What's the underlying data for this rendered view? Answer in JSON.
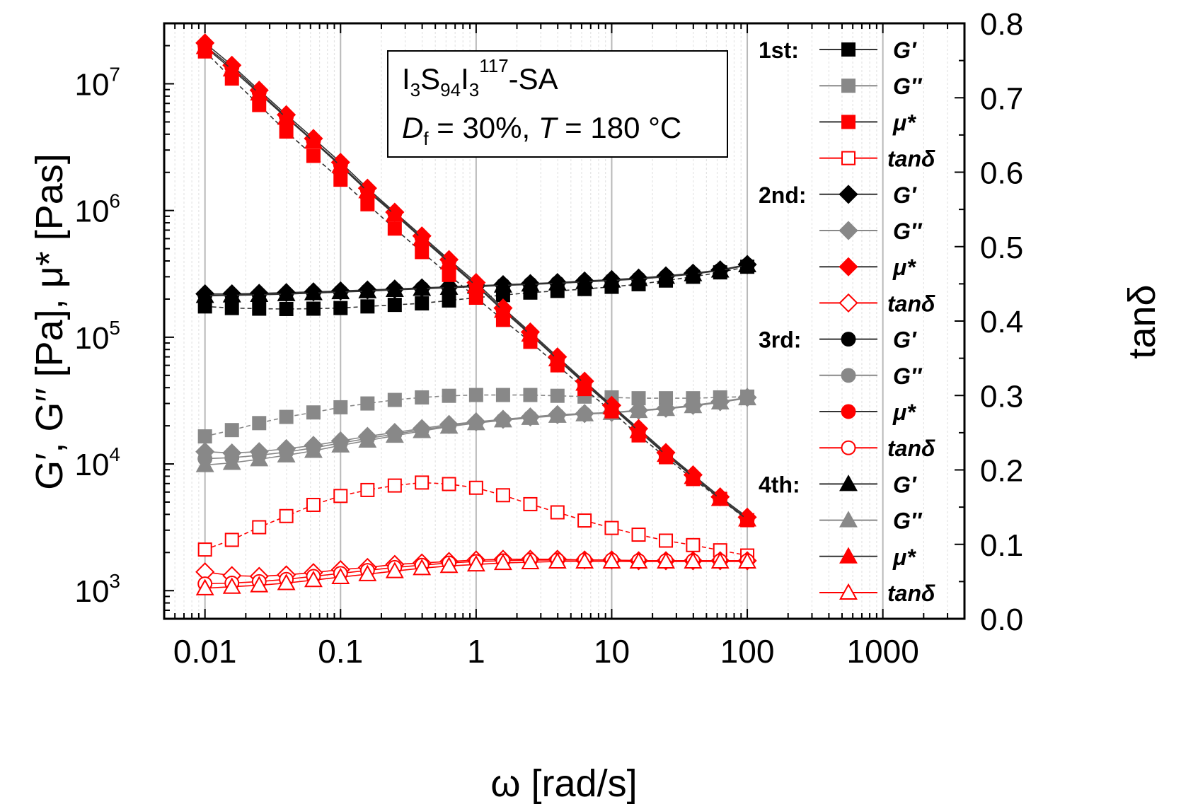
{
  "chart_data": {
    "type": "line",
    "x_axis": {
      "label": "ω [rad/s]",
      "scale": "log",
      "range": [
        0.005,
        4000
      ],
      "ticks": [
        "0.01",
        "0.1",
        "1",
        "10",
        "100",
        "1000"
      ]
    },
    "y_left": {
      "label": "G′, G′′ [Pa], μ* [Pas]",
      "scale": "log",
      "range": [
        600,
        30000000
      ],
      "ticks": [
        {
          "base": "10",
          "exp": "3"
        },
        {
          "base": "10",
          "exp": "4"
        },
        {
          "base": "10",
          "exp": "5"
        },
        {
          "base": "10",
          "exp": "6"
        },
        {
          "base": "10",
          "exp": "7"
        }
      ]
    },
    "y_right": {
      "label": "tanδ",
      "scale": "linear",
      "range": [
        0.0,
        0.8
      ],
      "ticks": [
        "0.0",
        "0.1",
        "0.2",
        "0.3",
        "0.4",
        "0.5",
        "0.6",
        "0.7",
        "0.8"
      ]
    },
    "annotation": {
      "sample_main": "I",
      "sub1": "3",
      "mid": "S",
      "sub2": "94",
      "mid2": "I",
      "sub3": "3",
      "sup": "117",
      "suffix": "-SA",
      "line2_prefix": "D",
      "line2_sub": "f",
      "line2_mid": " = 30%, ",
      "line2_T": "T",
      "line2_end": " = 180 °C"
    },
    "x": [
      0.01,
      0.0158,
      0.0251,
      0.0398,
      0.0631,
      0.1,
      0.158,
      0.251,
      0.398,
      0.631,
      1,
      1.58,
      2.51,
      3.98,
      6.31,
      10,
      15.8,
      25.1,
      39.8,
      63.1,
      100
    ],
    "runs": [
      {
        "label": "1st:",
        "marker": "square"
      },
      {
        "label": "2nd:",
        "marker": "diamond"
      },
      {
        "label": "3rd:",
        "marker": "circle"
      },
      {
        "label": "4th:",
        "marker": "triangle"
      }
    ],
    "quantities": [
      {
        "name": "G′",
        "color": "#000000",
        "line": "#333333",
        "fill": true,
        "axis": "left"
      },
      {
        "name": "G′′",
        "color": "#888888",
        "line": "#888888",
        "fill": true,
        "axis": "left"
      },
      {
        "name": "μ*",
        "color": "#ff0000",
        "line": "#333333",
        "fill": true,
        "axis": "left"
      },
      {
        "name": "tanδ",
        "color": "#ff0000",
        "line": "#ff0000",
        "fill": false,
        "axis": "right"
      }
    ],
    "series": [
      {
        "name": "1st G′",
        "run": 0,
        "q": 0,
        "values": [
          175000,
          170000,
          168000,
          167000,
          168000,
          170000,
          175000,
          180000,
          185000,
          195000,
          205000,
          215000,
          225000,
          232000,
          240000,
          250000,
          262000,
          280000,
          300000,
          325000,
          360000
        ]
      },
      {
        "name": "1st G′′",
        "run": 0,
        "q": 1,
        "values": [
          16500,
          18500,
          21000,
          23500,
          25500,
          28000,
          30000,
          32000,
          33500,
          34500,
          35000,
          35000,
          35000,
          34500,
          34000,
          33500,
          33000,
          33000,
          33000,
          33500,
          34000
        ]
      },
      {
        "name": "1st μ*",
        "run": 0,
        "q": 2,
        "values": [
          18000000,
          11000000,
          6800000,
          4200000,
          2700000,
          1750000,
          1120000,
          720000,
          470000,
          310000,
          205000,
          137000,
          92000,
          60000,
          39000,
          26000,
          16800,
          11300,
          7600,
          5300,
          3600
        ]
      },
      {
        "name": "1st tanδ",
        "run": 0,
        "q": 3,
        "values": [
          0.093,
          0.106,
          0.123,
          0.138,
          0.153,
          0.165,
          0.173,
          0.179,
          0.183,
          0.181,
          0.176,
          0.166,
          0.154,
          0.143,
          0.132,
          0.122,
          0.113,
          0.105,
          0.099,
          0.092,
          0.085
        ]
      },
      {
        "name": "2nd G′",
        "run": 1,
        "q": 0,
        "values": [
          220000,
          220000,
          222000,
          225000,
          228000,
          232000,
          236000,
          240000,
          245000,
          250000,
          255000,
          260000,
          265000,
          270000,
          278000,
          285000,
          293000,
          305000,
          320000,
          340000,
          375000
        ]
      },
      {
        "name": "2nd G′′",
        "run": 1,
        "q": 1,
        "values": [
          12500,
          12200,
          12500,
          13200,
          14000,
          15200,
          16500,
          17700,
          19000,
          20500,
          21500,
          22500,
          23500,
          24500,
          25000,
          25500,
          26500,
          27500,
          29000,
          31000,
          33500
        ]
      },
      {
        "name": "2nd μ*",
        "run": 1,
        "q": 2,
        "values": [
          21000000,
          14000000,
          8900000,
          5700000,
          3700000,
          2400000,
          1500000,
          970000,
          630000,
          410000,
          270000,
          170000,
          110000,
          70000,
          45000,
          29000,
          19000,
          12300,
          8200,
          5500,
          3800
        ]
      },
      {
        "name": "2nd tanδ",
        "run": 1,
        "q": 3,
        "values": [
          0.063,
          0.058,
          0.057,
          0.059,
          0.062,
          0.066,
          0.069,
          0.073,
          0.075,
          0.077,
          0.079,
          0.08,
          0.08,
          0.08,
          0.079,
          0.079,
          0.078,
          0.078,
          0.078,
          0.078,
          0.078
        ]
      },
      {
        "name": "3rd G′",
        "run": 2,
        "q": 0,
        "values": [
          215000,
          216000,
          218000,
          221000,
          225000,
          229000,
          233000,
          238000,
          243000,
          248000,
          253000,
          258000,
          263000,
          268000,
          275000,
          282000,
          290000,
          302000,
          317000,
          338000,
          372000
        ]
      },
      {
        "name": "3rd G′′",
        "run": 2,
        "q": 1,
        "values": [
          11000,
          11200,
          11700,
          12400,
          13400,
          14600,
          15900,
          17200,
          18600,
          20000,
          21200,
          22300,
          23300,
          24200,
          24800,
          25400,
          26300,
          27300,
          28800,
          30800,
          33200
        ]
      },
      {
        "name": "3rd μ*",
        "run": 2,
        "q": 2,
        "values": [
          20000000,
          13500000,
          8600000,
          5500000,
          3550000,
          2300000,
          1450000,
          950000,
          610000,
          400000,
          260000,
          165000,
          107000,
          68000,
          44000,
          28500,
          18500,
          12000,
          8000,
          5350,
          3700
        ]
      },
      {
        "name": "3rd tanδ",
        "run": 2,
        "q": 3,
        "values": [
          0.047,
          0.048,
          0.05,
          0.053,
          0.057,
          0.061,
          0.065,
          0.069,
          0.072,
          0.075,
          0.077,
          0.078,
          0.079,
          0.079,
          0.079,
          0.079,
          0.078,
          0.078,
          0.078,
          0.078,
          0.078
        ]
      },
      {
        "name": "4th G′",
        "run": 3,
        "q": 0,
        "values": [
          212000,
          214000,
          216000,
          219000,
          223000,
          227000,
          231000,
          236000,
          241000,
          246000,
          251000,
          256000,
          261000,
          266000,
          273000,
          280000,
          288000,
          300000,
          315000,
          336000,
          370000
        ]
      },
      {
        "name": "4th G′′",
        "run": 3,
        "q": 1,
        "values": [
          9800,
          10200,
          10900,
          11700,
          12700,
          14000,
          15300,
          16700,
          18200,
          19700,
          21000,
          22100,
          23100,
          24000,
          24700,
          25300,
          26200,
          27200,
          28600,
          30600,
          33000
        ]
      },
      {
        "name": "4th μ*",
        "run": 3,
        "q": 2,
        "values": [
          19500000,
          13000000,
          8400000,
          5400000,
          3500000,
          2250000,
          1420000,
          930000,
          600000,
          390000,
          255000,
          162000,
          105000,
          67000,
          43000,
          28000,
          18200,
          11800,
          7900,
          5300,
          3650
        ]
      },
      {
        "name": "4th tanδ",
        "run": 3,
        "q": 3,
        "values": [
          0.041,
          0.043,
          0.045,
          0.048,
          0.052,
          0.056,
          0.06,
          0.064,
          0.068,
          0.071,
          0.073,
          0.075,
          0.076,
          0.077,
          0.077,
          0.077,
          0.077,
          0.077,
          0.077,
          0.077,
          0.077
        ]
      }
    ]
  }
}
